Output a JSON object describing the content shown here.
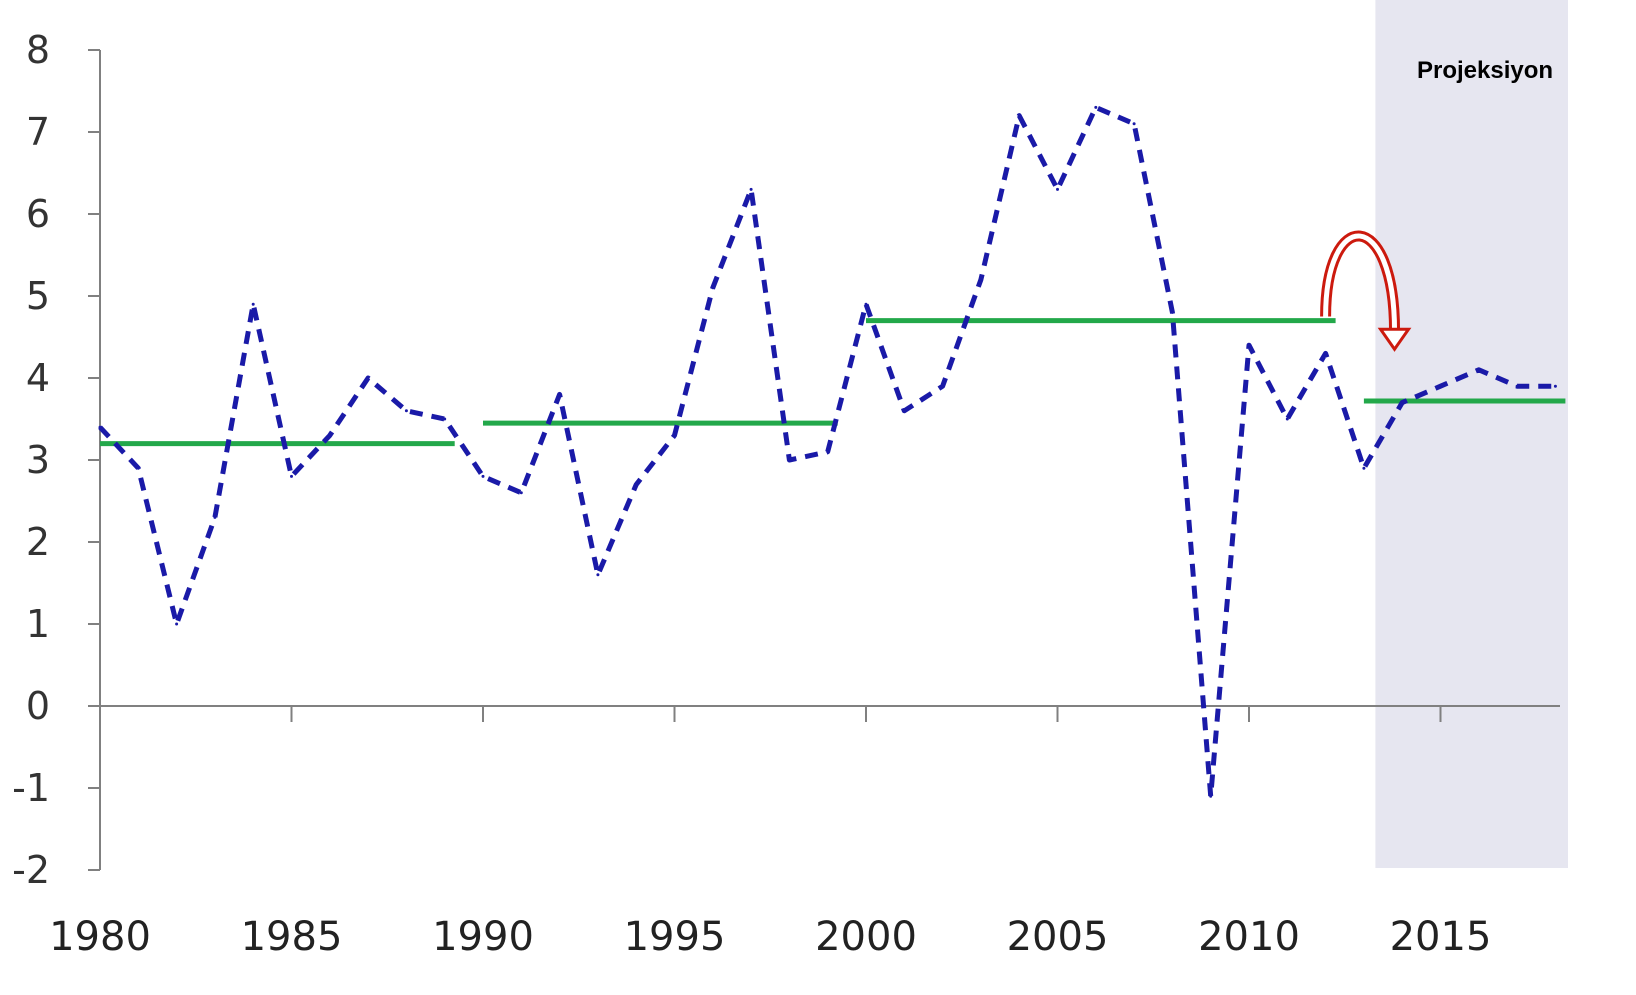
{
  "chart_data": {
    "type": "line",
    "x_ticks": [
      1980,
      1985,
      1990,
      1995,
      2000,
      2005,
      2010,
      2015
    ],
    "y_ticks": [
      -2,
      -1,
      0,
      1,
      2,
      3,
      4,
      5,
      6,
      7,
      8
    ],
    "xlim": [
      1980,
      2018
    ],
    "ylim": [
      -2,
      8
    ],
    "grid": false,
    "legend": "none",
    "projection_label": "Projeksiyon",
    "projection_start": 2013.3,
    "series": [
      {
        "style": "dashed",
        "color": "#1a1aa8",
        "points": [
          [
            1980,
            3.4
          ],
          [
            1981,
            2.9
          ],
          [
            1982,
            1.0
          ],
          [
            1983,
            2.3
          ],
          [
            1984,
            4.9
          ],
          [
            1985,
            2.8
          ],
          [
            1986,
            3.3
          ],
          [
            1987,
            4.0
          ],
          [
            1988,
            3.6
          ],
          [
            1989,
            3.5
          ],
          [
            1990,
            2.8
          ],
          [
            1991,
            2.6
          ],
          [
            1992,
            3.8
          ],
          [
            1993,
            1.6
          ],
          [
            1994,
            2.7
          ],
          [
            1995,
            3.3
          ],
          [
            1996,
            5.1
          ],
          [
            1997,
            6.3
          ],
          [
            1998,
            3.0
          ],
          [
            1999,
            3.1
          ],
          [
            2000,
            4.9
          ],
          [
            2001,
            3.6
          ],
          [
            2002,
            3.9
          ],
          [
            2003,
            5.2
          ],
          [
            2004,
            7.2
          ],
          [
            2005,
            6.3
          ],
          [
            2006,
            7.3
          ],
          [
            2007,
            7.1
          ],
          [
            2008,
            4.8
          ],
          [
            2009,
            -1.1
          ],
          [
            2010,
            4.4
          ],
          [
            2011,
            3.5
          ],
          [
            2012,
            4.3
          ],
          [
            2013,
            2.9
          ],
          [
            2014,
            3.7
          ],
          [
            2015,
            3.9
          ],
          [
            2016,
            4.1
          ],
          [
            2017,
            3.9
          ],
          [
            2018,
            3.9
          ]
        ]
      }
    ],
    "averages": [
      {
        "from": 1980,
        "to": 1989,
        "value": 3.2,
        "color": "#23a84a"
      },
      {
        "from": 1990,
        "to": 1999,
        "value": 3.45,
        "color": "#23a84a"
      },
      {
        "from": 2000,
        "to": 2012,
        "value": 4.7,
        "color": "#23a84a"
      },
      {
        "from": 2013,
        "to": 2018,
        "value": 3.72,
        "color": "#23a84a"
      }
    ],
    "annotation": {
      "type": "curved-arrow",
      "from_year": 2012,
      "to_year": 2013.8,
      "color": "#cc1a0e"
    },
    "colors": {
      "projection_band": "#e6e6f0",
      "axis": "#808080"
    }
  }
}
